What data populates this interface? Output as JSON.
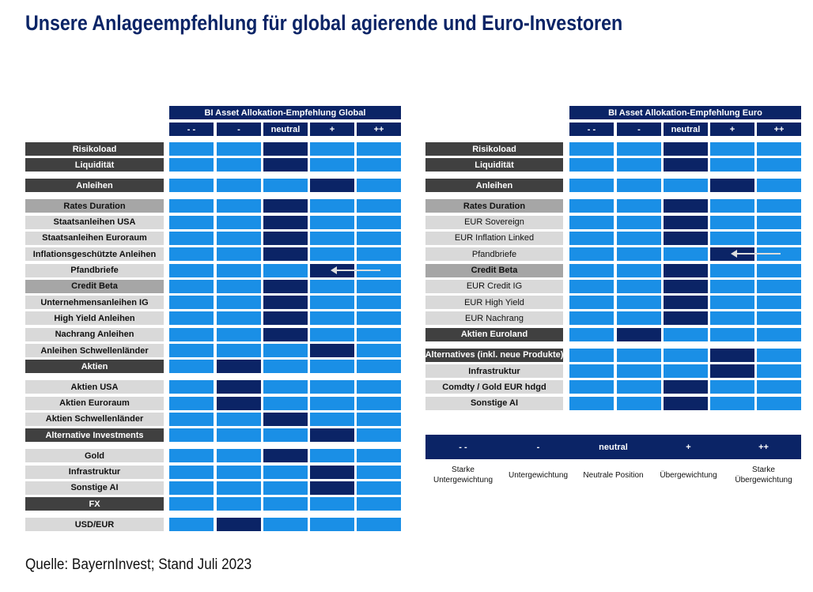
{
  "title": "Unsere Anlageempfehlung für global agierende und Euro-Investoren",
  "source": "Quelle: BayernInvest; Stand Juli 2023",
  "colors": {
    "light_cell": "#1a8fe6",
    "selected_cell": "#0b2466",
    "section": "#404040",
    "subsection": "#a6a6a6",
    "item": "#d9d9d9"
  },
  "columns": [
    "- -",
    "-",
    "neutral",
    "+",
    "++"
  ],
  "tables": [
    {
      "header": "BI Asset Allokation-Empfehlung Global",
      "rows": [
        {
          "label": "Risikoload",
          "style": "section",
          "selected": 2,
          "gap": false
        },
        {
          "label": "Liquidität",
          "style": "section",
          "selected": 2,
          "gap": true
        },
        {
          "label": "Anleihen",
          "style": "section",
          "selected": 3,
          "gap": true
        },
        {
          "label": "Rates Duration",
          "style": "sub",
          "selected": 2,
          "gap": false
        },
        {
          "label": "Staatsanleihen USA",
          "style": "itemb",
          "selected": 2,
          "gap": false
        },
        {
          "label": "Staatsanleihen Euroraum",
          "style": "itemb",
          "selected": 2,
          "gap": false
        },
        {
          "label": "Inflationsgeschützte Anleihen",
          "style": "itemb",
          "selected": 2,
          "gap": false
        },
        {
          "label": "Pfandbriefe",
          "style": "itemb",
          "selected": 3,
          "change_from": 4,
          "gap": false
        },
        {
          "label": "Credit Beta",
          "style": "sub",
          "selected": 2,
          "gap": false
        },
        {
          "label": "Unternehmensanleihen IG",
          "style": "itemb",
          "selected": 2,
          "gap": false
        },
        {
          "label": "High Yield Anleihen",
          "style": "itemb",
          "selected": 2,
          "gap": false
        },
        {
          "label": "Nachrang Anleihen",
          "style": "itemb",
          "selected": 2,
          "gap": false
        },
        {
          "label": "Anleihen Schwellenländer",
          "style": "itemb",
          "selected": 3,
          "gap": false
        },
        {
          "label": "Aktien",
          "style": "section",
          "selected": 1,
          "gap": true
        },
        {
          "label": "Aktien USA",
          "style": "itemb",
          "selected": 1,
          "gap": false
        },
        {
          "label": "Aktien Euroraum",
          "style": "itemb",
          "selected": 1,
          "gap": false
        },
        {
          "label": "Aktien Schwellenländer",
          "style": "itemb",
          "selected": 2,
          "gap": false
        },
        {
          "label": "Alternative Investments",
          "style": "section",
          "selected": 3,
          "gap": true
        },
        {
          "label": "Gold",
          "style": "itemb",
          "selected": 2,
          "gap": false
        },
        {
          "label": "Infrastruktur",
          "style": "itemb",
          "selected": 3,
          "gap": false
        },
        {
          "label": "Sonstige AI",
          "style": "itemb",
          "selected": 3,
          "gap": false
        },
        {
          "label": "FX",
          "style": "section",
          "selected": null,
          "gap": true
        },
        {
          "label": "USD/EUR",
          "style": "itemb",
          "selected": 1,
          "gap": false
        }
      ]
    },
    {
      "header": "BI Asset Allokation-Empfehlung Euro",
      "rows": [
        {
          "label": "Risikoload",
          "style": "section",
          "selected": 2,
          "gap": false
        },
        {
          "label": "Liquidität",
          "style": "section",
          "selected": 2,
          "gap": true
        },
        {
          "label": "Anleihen",
          "style": "section",
          "selected": 3,
          "gap": true
        },
        {
          "label": "Rates Duration",
          "style": "sub",
          "selected": 2,
          "gap": false
        },
        {
          "label": "EUR Sovereign",
          "style": "item",
          "selected": 2,
          "gap": false
        },
        {
          "label": "EUR Inflation Linked",
          "style": "item",
          "selected": 2,
          "gap": false
        },
        {
          "label": "Pfandbriefe",
          "style": "item",
          "selected": 3,
          "change_from": 4,
          "gap": false
        },
        {
          "label": "Credit Beta",
          "style": "sub",
          "selected": 2,
          "gap": false
        },
        {
          "label": "EUR Credit IG",
          "style": "item",
          "selected": 2,
          "gap": false
        },
        {
          "label": "EUR High Yield",
          "style": "item",
          "selected": 2,
          "gap": false
        },
        {
          "label": "EUR Nachrang",
          "style": "item",
          "selected": 2,
          "gap": false
        },
        {
          "label": "Aktien Euroland",
          "style": "section",
          "selected": 1,
          "gap": true
        },
        {
          "label": "Alternatives (inkl. neue Produkte)",
          "style": "section",
          "selected": 3,
          "gap": false
        },
        {
          "label": "Infrastruktur",
          "style": "itemb",
          "selected": 3,
          "gap": false
        },
        {
          "label": "Comdty / Gold EUR hdgd",
          "style": "itemb",
          "selected": 2,
          "gap": false
        },
        {
          "label": "Sonstige AI",
          "style": "itemb",
          "selected": 2,
          "gap": false
        }
      ]
    }
  ],
  "legend": [
    {
      "symbol": "- -",
      "description": "Starke Untergewichtung"
    },
    {
      "symbol": "-",
      "description": "Untergewichtung"
    },
    {
      "symbol": "neutral",
      "description": "Neutrale Position"
    },
    {
      "symbol": "+",
      "description": "Übergewichtung"
    },
    {
      "symbol": "++",
      "description": "Starke Übergewichtung"
    }
  ]
}
